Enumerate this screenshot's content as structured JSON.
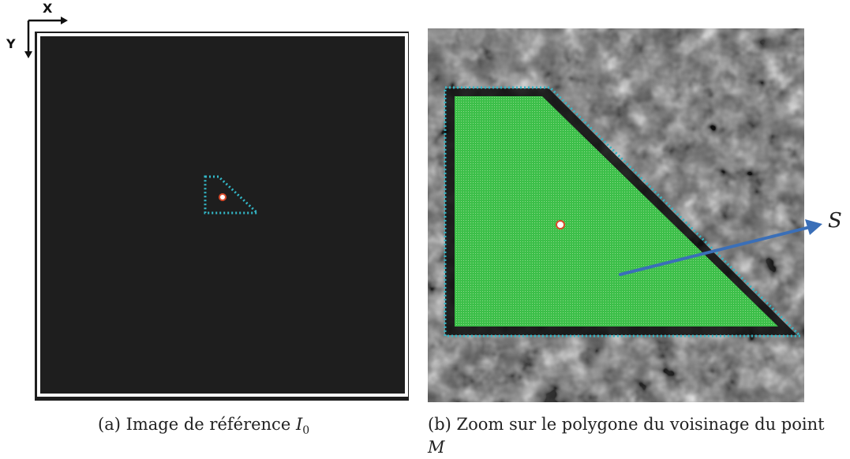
{
  "axes": {
    "x_label": "X",
    "y_label": "Y"
  },
  "panel_a": {
    "caption_prefix": "(a) Image de référence ",
    "caption_symbol": "I",
    "caption_subscript": "0"
  },
  "panel_b": {
    "caption_line1": "(b) Zoom sur le polygone du voisinage du point",
    "caption_line2": "M",
    "arrow_label": "S"
  },
  "colors": {
    "polygon_outline": "#33b8c8",
    "polygon_fill": "#33b842",
    "arrow": "#3a6fb8",
    "point": "#ffffff",
    "point_stroke": "#d94a2a",
    "frame": "#ffffff"
  }
}
